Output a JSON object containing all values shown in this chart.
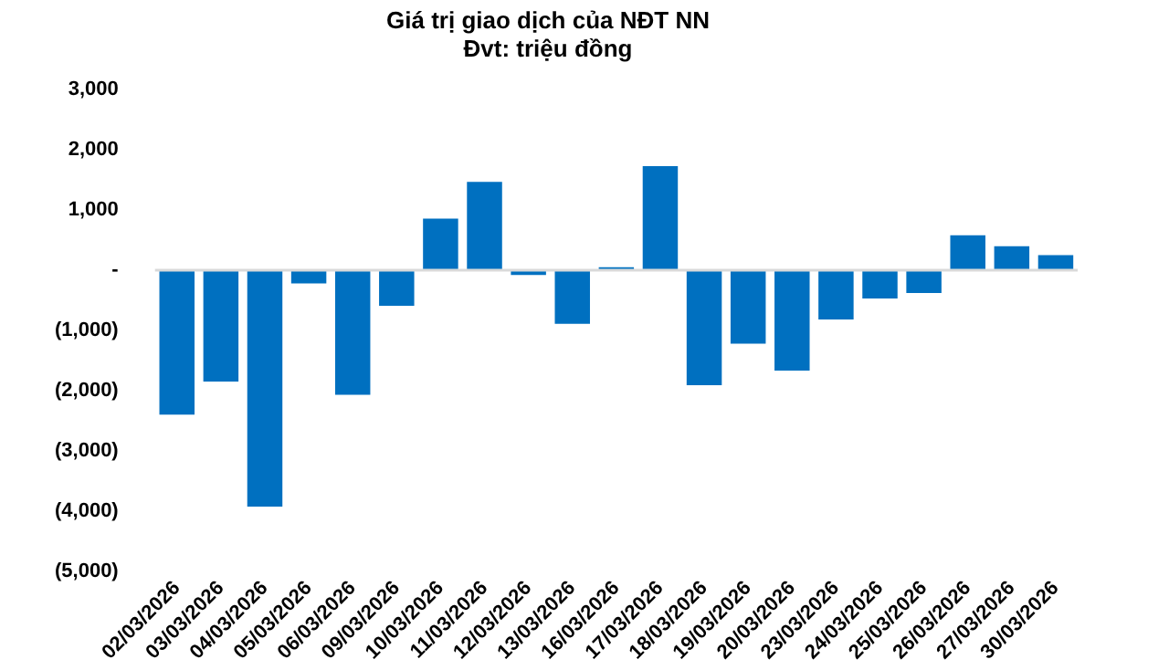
{
  "chart_data": {
    "type": "bar",
    "title": "Giá trị giao dịch của NĐT NN",
    "subtitle": "Đvt: triệu đồng",
    "categories": [
      "02/03/2026",
      "03/03/2026",
      "04/03/2026",
      "05/03/2026",
      "06/03/2026",
      "09/03/2026",
      "10/03/2026",
      "11/03/2026",
      "12/03/2026",
      "13/03/2026",
      "16/03/2026",
      "17/03/2026",
      "18/03/2026",
      "19/03/2026",
      "20/03/2026",
      "23/03/2026",
      "24/03/2026",
      "25/03/2026",
      "26/03/2026",
      "27/03/2026",
      "30/03/2026"
    ],
    "values": [
      -2400,
      -1850,
      -3930,
      -220,
      -2070,
      -590,
      860,
      1470,
      -80,
      -890,
      50,
      1730,
      -1910,
      -1220,
      -1670,
      -820,
      -470,
      -380,
      580,
      400,
      250
    ],
    "color": "#0070c0",
    "ylim": [
      -5000,
      3000
    ],
    "yticks": [
      {
        "value": -5000,
        "label": "(5,000)"
      },
      {
        "value": -4000,
        "label": "(4,000)"
      },
      {
        "value": -3000,
        "label": "(3,000)"
      },
      {
        "value": -2000,
        "label": "(2,000)"
      },
      {
        "value": -1000,
        "label": "(1,000)"
      },
      {
        "value": 0,
        "label": "-"
      },
      {
        "value": 1000,
        "label": "1,000"
      },
      {
        "value": 2000,
        "label": "2,000"
      },
      {
        "value": 3000,
        "label": "3,000"
      }
    ],
    "ref_lines": [
      {
        "axis": "y",
        "value": 0,
        "color": "#d9d9d9"
      }
    ],
    "grid": false,
    "legend": false
  }
}
